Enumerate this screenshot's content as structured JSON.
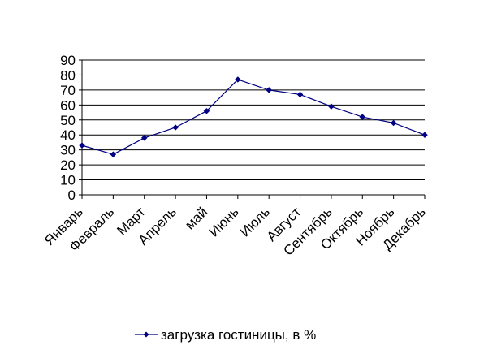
{
  "chart_data": {
    "type": "line",
    "title": "",
    "xlabel": "",
    "ylabel": "",
    "ylim": [
      0,
      90
    ],
    "yticks": [
      0,
      10,
      20,
      30,
      40,
      50,
      60,
      70,
      80,
      90
    ],
    "grid": true,
    "legend_position": "bottom",
    "categories": [
      "Январь",
      "Февраль",
      "Март",
      "Апрель",
      "май",
      "Июнь",
      "Июль",
      "Август",
      "Сентябрь",
      "Октябрь",
      "Ноябрь",
      "Декабрь"
    ],
    "series": [
      {
        "name": "загрузка гостиницы, в %",
        "color": "#000080",
        "marker": "diamond",
        "values": [
          33,
          27,
          38,
          45,
          56,
          77,
          70,
          67,
          59,
          52,
          48,
          40
        ]
      }
    ]
  }
}
